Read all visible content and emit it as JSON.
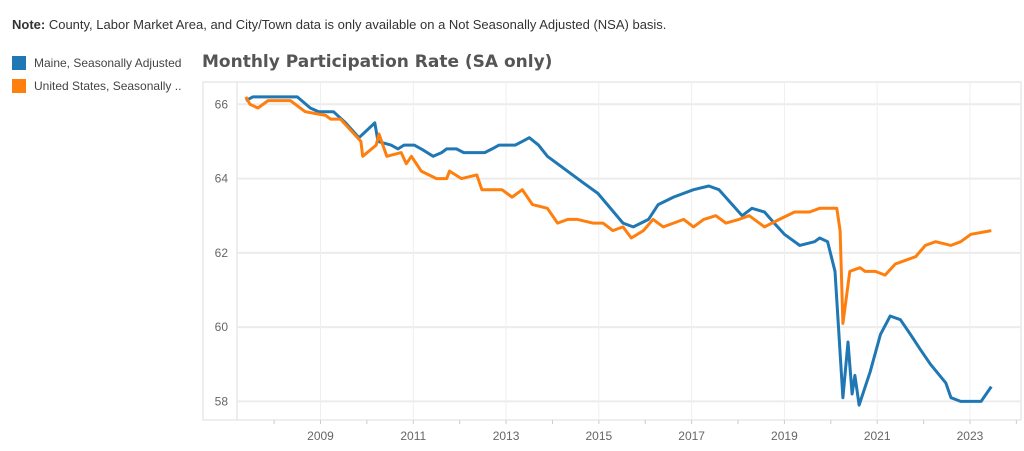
{
  "note": {
    "label": "Note:",
    "text": " County, Labor Market Area, and City/Town data is only available on a Not Seasonally Adjusted (NSA) basis."
  },
  "chart_data": {
    "type": "line",
    "title": "Monthly Participation Rate (SA only)",
    "xlabel": "",
    "ylabel": "",
    "xlim": [
      2007.2,
      2024.1
    ],
    "ylim": [
      57.5,
      66.6
    ],
    "xticks": [
      2009,
      2011,
      2013,
      2015,
      2017,
      2019,
      2021,
      2023
    ],
    "yticks": [
      58,
      60,
      62,
      64,
      66
    ],
    "grid": true,
    "legend_position": "top-left",
    "series": [
      {
        "name": "Maine, Seasonally Adjusted",
        "color": "#1f77b4",
        "x": [
          2007.39,
          2007.54,
          2008.5,
          2008.78,
          2008.96,
          2009.28,
          2009.54,
          2009.83,
          2010.17,
          2010.24,
          2010.52,
          2010.67,
          2010.8,
          2011.02,
          2011.17,
          2011.43,
          2011.61,
          2011.72,
          2011.93,
          2012.09,
          2012.54,
          2012.7,
          2012.85,
          2013.2,
          2013.35,
          2013.5,
          2013.7,
          2013.89,
          2014.65,
          2014.98,
          2015.52,
          2015.74,
          2016.07,
          2016.28,
          2016.61,
          2017.04,
          2017.37,
          2017.59,
          2018.09,
          2018.3,
          2018.57,
          2018.78,
          2019.0,
          2019.33,
          2019.65,
          2019.76,
          2019.93,
          2020.09,
          2020.26,
          2020.37,
          2020.46,
          2020.52,
          2020.61,
          2020.85,
          2021.07,
          2021.28,
          2021.5,
          2021.72,
          2021.93,
          2022.15,
          2022.48,
          2022.59,
          2022.8,
          2023.24,
          2023.46
        ],
        "y": [
          66.1,
          66.2,
          66.2,
          65.9,
          65.8,
          65.8,
          65.5,
          65.1,
          65.5,
          65.0,
          64.9,
          64.8,
          64.9,
          64.9,
          64.8,
          64.6,
          64.7,
          64.8,
          64.8,
          64.7,
          64.7,
          64.8,
          64.9,
          64.9,
          65.0,
          65.1,
          64.9,
          64.6,
          63.9,
          63.6,
          62.8,
          62.7,
          62.9,
          63.3,
          63.5,
          63.7,
          63.8,
          63.7,
          63.0,
          63.2,
          63.1,
          62.8,
          62.5,
          62.2,
          62.3,
          62.4,
          62.3,
          61.5,
          58.1,
          59.6,
          58.2,
          58.7,
          57.9,
          58.8,
          59.8,
          60.3,
          60.2,
          59.8,
          59.4,
          59.0,
          58.5,
          58.1,
          58.0,
          58.0,
          58.4
        ]
      },
      {
        "name": "United States, Seasonally ..",
        "color": "#ff7f0e",
        "x": [
          2007.39,
          2007.48,
          2007.65,
          2007.87,
          2008.35,
          2008.67,
          2009.11,
          2009.22,
          2009.43,
          2009.87,
          2009.91,
          2010.2,
          2010.26,
          2010.43,
          2010.74,
          2010.85,
          2010.96,
          2011.17,
          2011.5,
          2011.72,
          2011.78,
          2012.04,
          2012.37,
          2012.48,
          2012.91,
          2013.13,
          2013.35,
          2013.57,
          2013.89,
          2014.11,
          2014.33,
          2014.54,
          2014.87,
          2015.09,
          2015.3,
          2015.52,
          2015.7,
          2015.96,
          2016.17,
          2016.39,
          2016.83,
          2017.04,
          2017.26,
          2017.52,
          2017.74,
          2018.02,
          2018.24,
          2018.57,
          2018.89,
          2019.22,
          2019.54,
          2019.76,
          2020.13,
          2020.2,
          2020.26,
          2020.41,
          2020.63,
          2020.74,
          2020.96,
          2021.17,
          2021.39,
          2021.61,
          2021.83,
          2022.04,
          2022.26,
          2022.59,
          2022.8,
          2023.02,
          2023.46
        ],
        "y": [
          66.2,
          66.0,
          65.9,
          66.1,
          66.1,
          65.8,
          65.7,
          65.6,
          65.6,
          65.0,
          64.6,
          64.9,
          65.2,
          64.6,
          64.7,
          64.4,
          64.6,
          64.2,
          64.0,
          64.0,
          64.2,
          64.0,
          64.1,
          63.7,
          63.7,
          63.5,
          63.7,
          63.3,
          63.2,
          62.8,
          62.9,
          62.9,
          62.8,
          62.8,
          62.6,
          62.7,
          62.4,
          62.6,
          62.9,
          62.7,
          62.9,
          62.7,
          62.9,
          63.0,
          62.8,
          62.9,
          63.0,
          62.7,
          62.9,
          63.1,
          63.1,
          63.2,
          63.2,
          62.6,
          60.1,
          61.5,
          61.6,
          61.5,
          61.5,
          61.4,
          61.7,
          61.8,
          61.9,
          62.2,
          62.3,
          62.2,
          62.3,
          62.5,
          62.6
        ]
      }
    ]
  }
}
